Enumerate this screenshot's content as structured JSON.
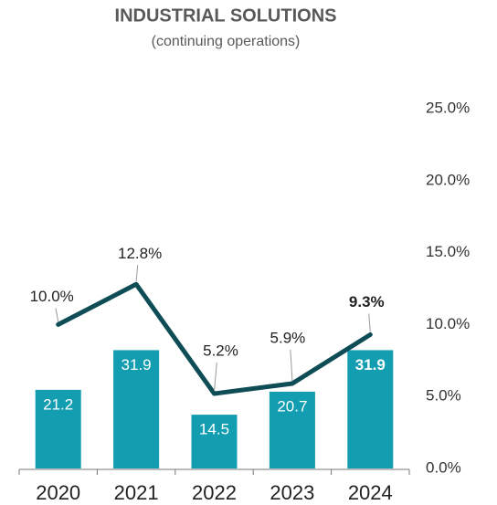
{
  "chart_data": {
    "type": "bar_line",
    "title": "INDUSTRIAL SOLUTIONS",
    "subtitle": "(continuing operations)",
    "categories": [
      "2020",
      "2021",
      "2022",
      "2023",
      "2024"
    ],
    "series": [
      {
        "type": "bar",
        "color": "#139db1",
        "values": [
          21.2,
          31.9,
          14.5,
          20.7,
          31.9
        ]
      },
      {
        "type": "line",
        "axis": "y2",
        "color": "#0e4d55",
        "values": [
          10.0,
          12.8,
          5.2,
          5.9,
          9.3
        ],
        "value_labels": [
          "10.0%",
          "12.8%",
          "5.2%",
          "5.9%",
          "9.3%"
        ]
      }
    ],
    "ylim": [
      0,
      97
    ],
    "y2lim": [
      0,
      25
    ],
    "y2ticks": [
      {
        "value": 0,
        "label": "0.0%"
      },
      {
        "value": 5,
        "label": "5.0%"
      },
      {
        "value": 10,
        "label": "10.0%"
      },
      {
        "value": 15,
        "label": "15.0%"
      },
      {
        "value": 20,
        "label": "20.0%"
      },
      {
        "value": 25,
        "label": "25.0%"
      }
    ]
  }
}
